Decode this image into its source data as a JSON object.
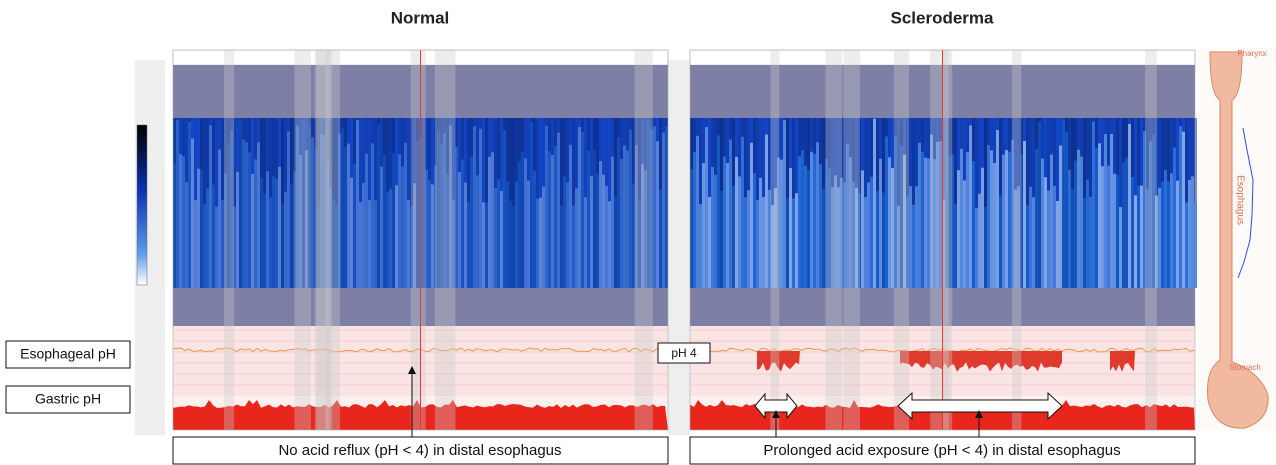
{
  "panels": [
    {
      "title": "Normal",
      "caption": "No acid reflux (pH < 4) in distal esophagus"
    },
    {
      "title": "Scleroderma",
      "caption": "Prolonged acid exposure (pH < 4) in distal esophagus"
    }
  ],
  "labels": {
    "esophageal": "Esophageal pH",
    "gastric": "Gastric pH",
    "ph4": "pH 4"
  },
  "diagram": {
    "pharynx": "Pharynx",
    "esophagus": "Esophagus",
    "stomach": "Stomach"
  }
}
